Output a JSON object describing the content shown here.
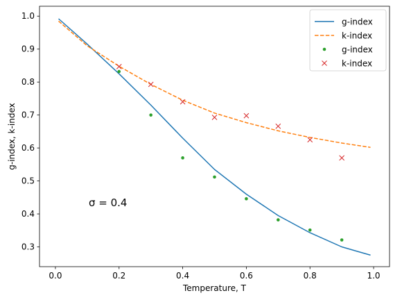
{
  "chart_data": {
    "type": "line",
    "xlabel": "Temperature, T",
    "ylabel": "g-index, k-index",
    "xlim": [
      -0.05,
      1.05
    ],
    "ylim": [
      0.24,
      1.03
    ],
    "x_ticks": [
      0.0,
      0.2,
      0.4,
      0.6,
      0.8,
      1.0
    ],
    "x_tick_labels": [
      "0.0",
      "0.2",
      "0.4",
      "0.6",
      "0.8",
      "1.0"
    ],
    "y_ticks": [
      0.3,
      0.4,
      0.5,
      0.6,
      0.7,
      0.8,
      0.9,
      1.0
    ],
    "y_tick_labels": [
      "0.3",
      "0.4",
      "0.5",
      "0.6",
      "0.7",
      "0.8",
      "0.9",
      "1.0"
    ],
    "annotation": "σ = 0.4",
    "legend_position": "top-right",
    "grid": false,
    "lines": [
      {
        "name": "g-index",
        "style": "solid",
        "color": "#1f77b4",
        "x": [
          0.01,
          0.1,
          0.2,
          0.3,
          0.4,
          0.5,
          0.6,
          0.7,
          0.8,
          0.9,
          0.99
        ],
        "y": [
          0.992,
          0.915,
          0.825,
          0.73,
          0.63,
          0.535,
          0.46,
          0.395,
          0.343,
          0.3,
          0.275
        ]
      },
      {
        "name": "k-index",
        "style": "dashed",
        "color": "#ff7f0e",
        "x": [
          0.01,
          0.1,
          0.2,
          0.3,
          0.4,
          0.5,
          0.6,
          0.7,
          0.8,
          0.9,
          0.99
        ],
        "y": [
          0.985,
          0.91,
          0.848,
          0.793,
          0.745,
          0.706,
          0.677,
          0.652,
          0.632,
          0.615,
          0.602
        ]
      }
    ],
    "points": [
      {
        "name": "g-index",
        "marker": "dot",
        "color": "#2ca02c",
        "x": [
          0.2,
          0.3,
          0.4,
          0.5,
          0.6,
          0.7,
          0.8,
          0.9
        ],
        "y": [
          0.832,
          0.7,
          0.57,
          0.512,
          0.446,
          0.382,
          0.351,
          0.321
        ]
      },
      {
        "name": "k-index",
        "marker": "x",
        "color": "#d62728",
        "x": [
          0.2,
          0.3,
          0.4,
          0.5,
          0.6,
          0.7,
          0.8,
          0.9
        ],
        "y": [
          0.847,
          0.793,
          0.74,
          0.693,
          0.698,
          0.666,
          0.625,
          0.57
        ]
      }
    ]
  }
}
